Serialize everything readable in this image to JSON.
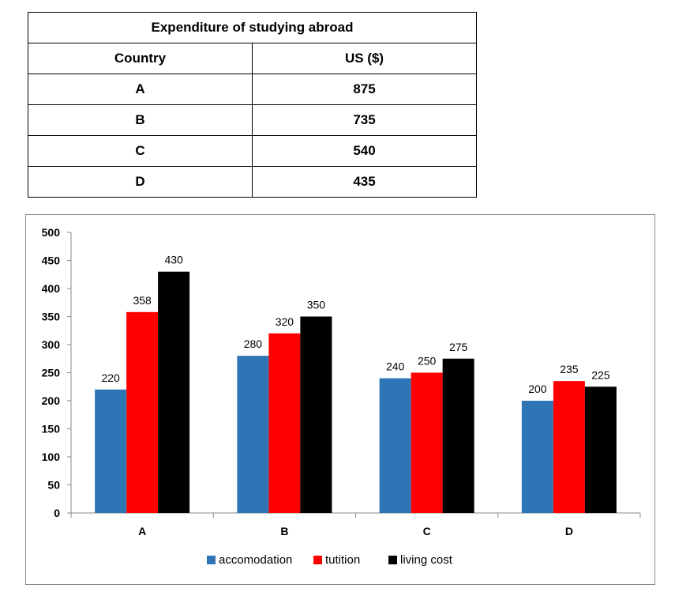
{
  "table": {
    "title": "Expenditure of studying abroad",
    "headers": [
      "Country",
      "US ($)"
    ],
    "rows": [
      [
        "A",
        "875"
      ],
      [
        "B",
        "735"
      ],
      [
        "C",
        "540"
      ],
      [
        "D",
        "435"
      ]
    ]
  },
  "chart_data": {
    "type": "bar",
    "categories": [
      "A",
      "B",
      "C",
      "D"
    ],
    "series": [
      {
        "name": "accomodation",
        "values": [
          220,
          280,
          240,
          200
        ],
        "color": "#2e75b6"
      },
      {
        "name": "tutition",
        "values": [
          358,
          320,
          250,
          235
        ],
        "color": "#ff0000"
      },
      {
        "name": "living cost",
        "values": [
          430,
          350,
          275,
          225
        ],
        "color": "#000000"
      }
    ],
    "ylim": [
      0,
      500
    ],
    "yticks": [
      0,
      50,
      100,
      150,
      200,
      250,
      300,
      350,
      400,
      450,
      500
    ],
    "grid": false,
    "legend_position": "bottom",
    "data_labels": true
  }
}
